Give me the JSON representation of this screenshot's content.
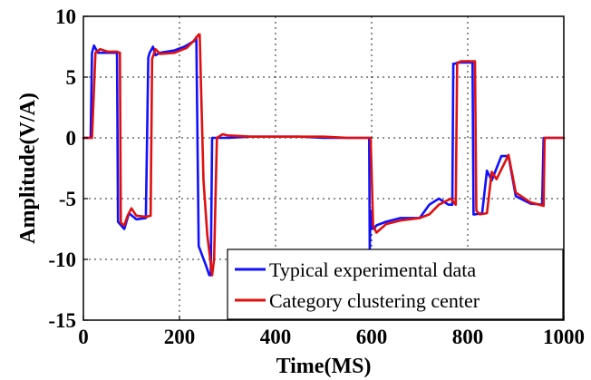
{
  "chart_data": {
    "type": "line",
    "xlabel": "Time(MS)",
    "ylabel": "Amplitude(V/A)",
    "xlim": [
      0,
      1000
    ],
    "ylim": [
      -15,
      10
    ],
    "xticks": [
      "0",
      "200",
      "400",
      "600",
      "800",
      "1000"
    ],
    "yticks": [
      "10",
      "5",
      "0",
      "-5",
      "-10",
      "-15"
    ],
    "grid": true,
    "legend_position": "bottom-right",
    "series": [
      {
        "name": "Typical experimental data",
        "color": "#1010ff",
        "x": [
          0,
          15,
          18,
          22,
          30,
          70,
          72,
          74,
          85,
          95,
          110,
          130,
          135,
          138,
          145,
          150,
          160,
          190,
          210,
          232,
          235,
          240,
          255,
          262,
          265,
          268,
          272,
          300,
          350,
          400,
          450,
          500,
          550,
          595,
          596,
          598,
          600,
          605,
          610,
          630,
          660,
          700,
          720,
          740,
          760,
          768,
          770,
          773,
          780,
          810,
          812,
          815,
          830,
          840,
          850,
          860,
          870,
          885,
          900,
          930,
          955,
          958,
          960,
          1000
        ],
        "y": [
          0,
          0,
          7,
          7.6,
          7,
          7,
          -6.9,
          -7,
          -7.5,
          -6.2,
          -6.7,
          -6.6,
          6.6,
          7,
          7.5,
          6.8,
          7,
          7.2,
          7.5,
          8,
          8.3,
          -8.9,
          -10.5,
          -11.3,
          -11.3,
          0,
          0,
          0,
          0.1,
          0.1,
          0.1,
          0,
          0,
          0,
          -9.2,
          -6,
          -7.4,
          -7.5,
          -7.2,
          -6.9,
          -6.6,
          -6.6,
          -5.5,
          -5,
          -5.5,
          -5.5,
          6.1,
          6.1,
          6.2,
          6.2,
          -6.3,
          -6.3,
          -6.2,
          -2.7,
          -3.5,
          -2.5,
          -1.5,
          -1.5,
          -4.8,
          -5.4,
          -5.5,
          0,
          0,
          0
        ]
      },
      {
        "name": "Category clustering center",
        "color": "#e01010",
        "x": [
          0,
          15,
          18,
          25,
          35,
          50,
          70,
          76,
          78,
          85,
          92,
          100,
          110,
          130,
          140,
          143,
          150,
          160,
          190,
          215,
          230,
          240,
          242,
          250,
          258,
          268,
          272,
          278,
          290,
          300,
          350,
          400,
          450,
          500,
          550,
          598,
          603,
          610,
          630,
          660,
          700,
          720,
          740,
          765,
          775,
          778,
          785,
          815,
          818,
          825,
          840,
          850,
          860,
          870,
          885,
          900,
          930,
          958,
          960,
          1000
        ],
        "y": [
          0,
          0,
          0,
          7,
          7.3,
          7.1,
          7.1,
          7,
          -7,
          -7.2,
          -6.4,
          -5.8,
          -6.4,
          -6.5,
          -6.4,
          6.5,
          7.3,
          6.9,
          7,
          7.4,
          8,
          8.5,
          8.5,
          -3.5,
          -8,
          -11.3,
          -10,
          0,
          0.3,
          0.2,
          0.1,
          0.1,
          0.1,
          0.1,
          0,
          0,
          -7.2,
          -7.8,
          -7.1,
          -6.8,
          -6.6,
          -6.3,
          -5.5,
          -5,
          -5.5,
          6.1,
          6.3,
          6.3,
          -6,
          -6.3,
          -6.2,
          -2.8,
          -3.4,
          -2.6,
          -1.4,
          -4.5,
          -5.3,
          -5.6,
          0,
          0
        ]
      }
    ]
  }
}
